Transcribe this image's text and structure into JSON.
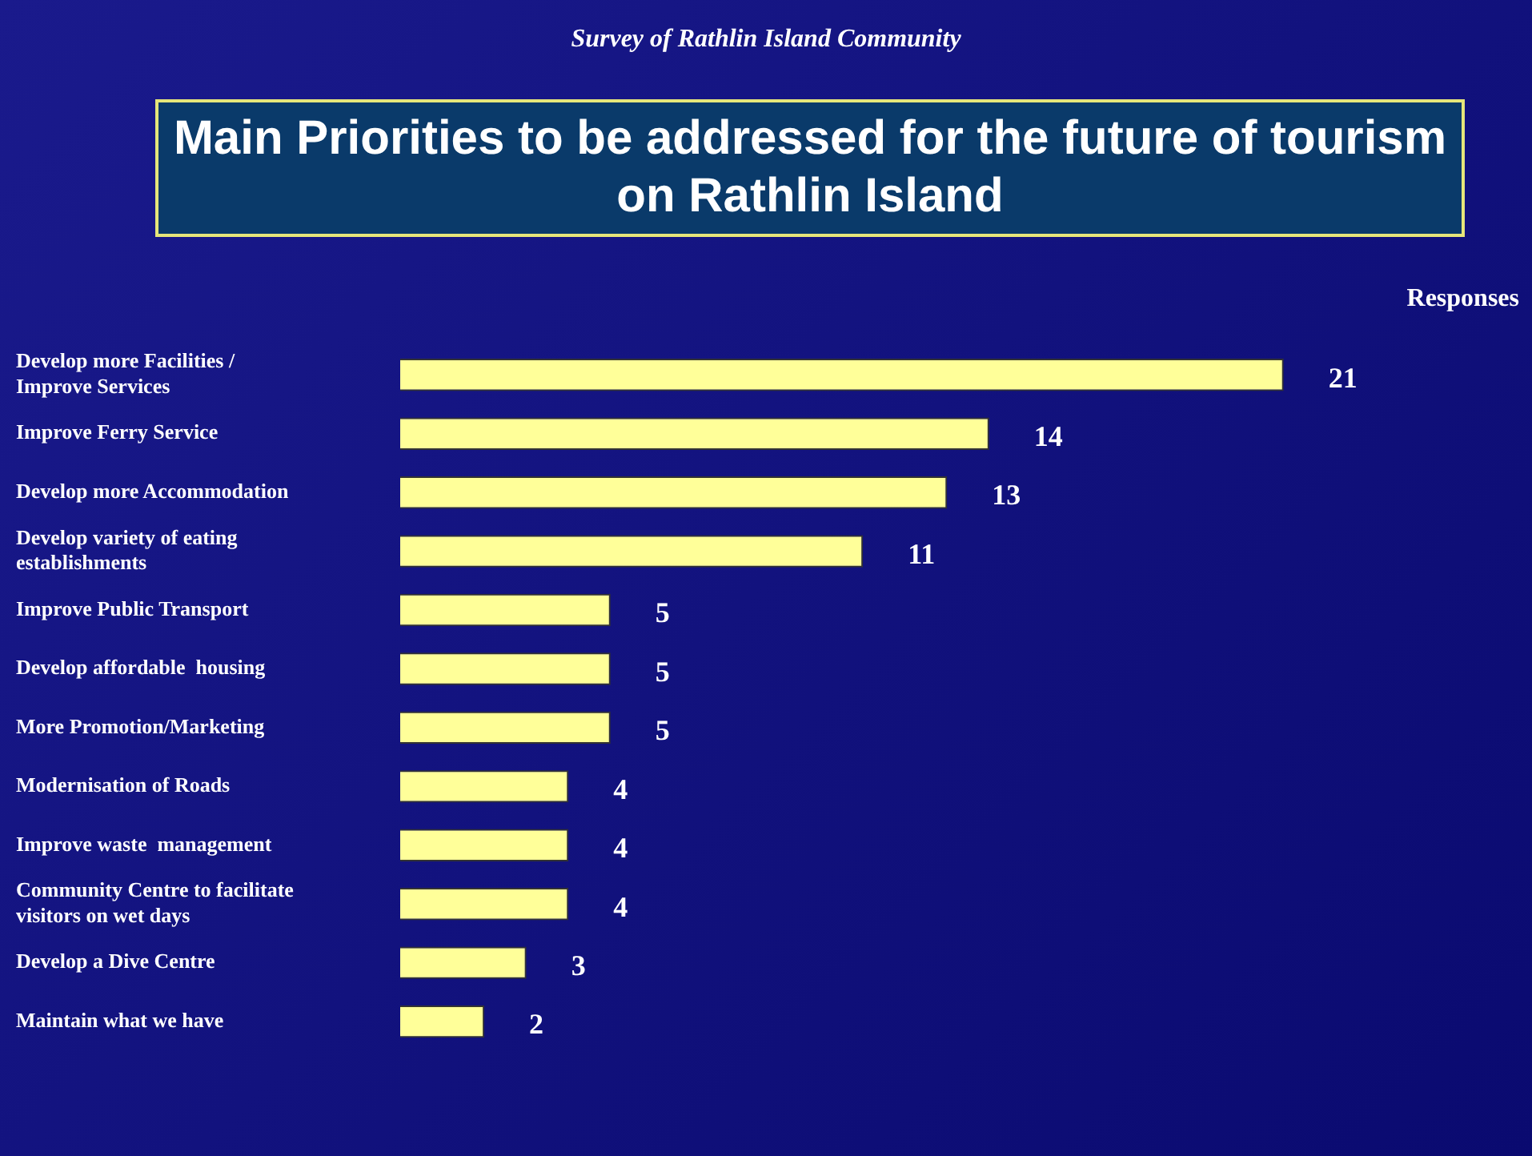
{
  "chart_data": {
    "type": "bar",
    "orientation": "horizontal",
    "subtitle": "Survey of Rathlin Island Community",
    "title": "Main Priorities to be addressed for the future of tourism on Rathlin Island",
    "xlabel": "Responses",
    "categories": [
      "Develop more Facilities / Improve Services",
      "Improve Ferry Service",
      "Develop more Accommodation",
      "Develop variety of eating establishments",
      "Improve Public Transport",
      "Develop affordable  housing",
      "More Promotion/Marketing",
      "Modernisation of Roads",
      "Improve waste  management",
      "Community Centre to facilitate visitors on wet days",
      "Develop a Dive Centre",
      "Maintain what we have"
    ],
    "values": [
      21,
      14,
      13,
      11,
      5,
      5,
      5,
      4,
      4,
      4,
      3,
      2
    ],
    "color": "#ffff99",
    "data_labels": true,
    "legend": false
  }
}
